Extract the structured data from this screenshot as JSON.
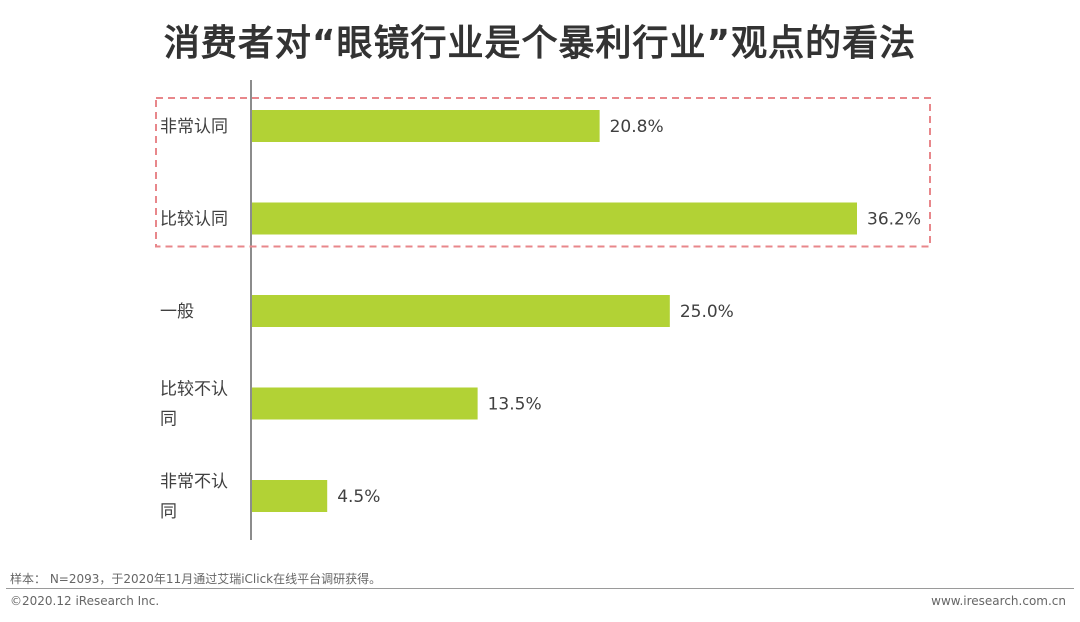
{
  "title": "消费者对“眼镜行业是个暴利行业”观点的看法",
  "chart_data": {
    "type": "bar",
    "orientation": "horizontal",
    "categories": [
      "非常认同",
      "比较认同",
      "一般",
      "比较不认同",
      "非常不认同"
    ],
    "values": [
      20.8,
      36.2,
      25.0,
      13.5,
      4.5
    ],
    "value_labels": [
      "20.8%",
      "36.2%",
      "25.0%",
      "13.5%",
      "4.5%"
    ],
    "unit": "%",
    "xlim": [
      0,
      36.2
    ],
    "bar_color": "#b2d235",
    "highlight": {
      "categories": [
        "非常认同",
        "比较认同"
      ],
      "style": "dashed-box",
      "color": "#e8878b"
    },
    "grid": false,
    "legend": "none"
  },
  "footer": {
    "note": "样本： N=2093，于2020年11月通过艾瑞iClick在线平台调研获得。",
    "copyright": "©2020.12 iResearch Inc.",
    "website": "www.iresearch.com.cn"
  }
}
